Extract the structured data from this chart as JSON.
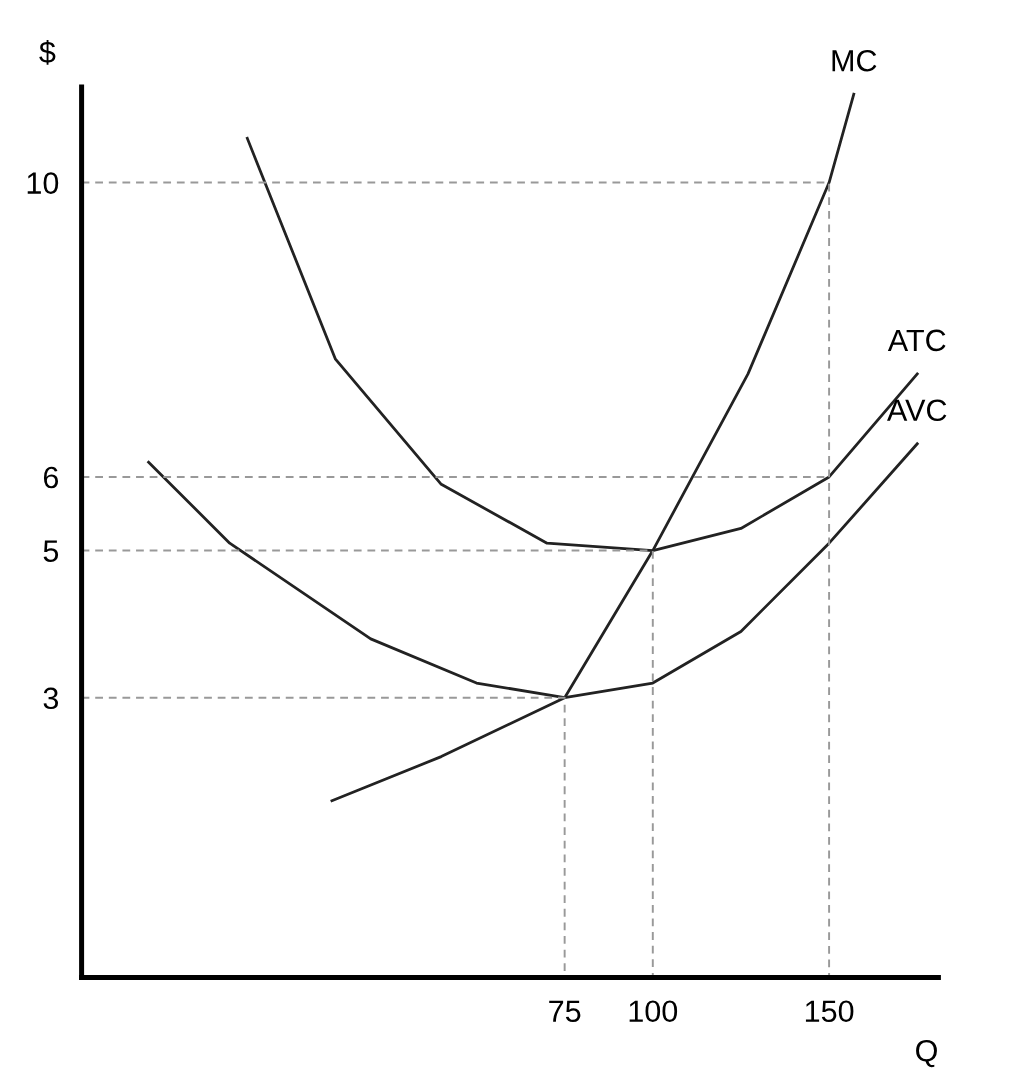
{
  "chart_data": {
    "type": "line",
    "xlabel": "Q",
    "ylabel": "$",
    "xlim": [
      -62,
      181
    ],
    "ylim": [
      -0.8,
      11.3
    ],
    "xticks": [
      75,
      100,
      150
    ],
    "yticks": [
      3,
      5,
      6,
      10
    ],
    "grid": false,
    "legend": false,
    "marker": "none",
    "line_style": "solid",
    "series": [
      {
        "name": "MC",
        "color": "#222222",
        "x": [
          9,
          40,
          75,
          100,
          127,
          150,
          157
        ],
        "values": [
          1.6,
          2.2,
          3,
          5,
          7.4,
          10,
          11.2
        ]
      },
      {
        "name": "ATC",
        "color": "#222222",
        "x": [
          -15,
          10,
          40,
          70,
          100,
          125,
          150,
          175
        ],
        "values": [
          10.6,
          7.6,
          5.9,
          5.1,
          5,
          5.3,
          6,
          7.4
        ]
      },
      {
        "name": "AVC",
        "color": "#222222",
        "x": [
          -43,
          -20,
          20,
          50,
          75,
          100,
          125,
          150,
          175
        ],
        "values": [
          6.2,
          5.1,
          3.8,
          3.2,
          3,
          3.2,
          3.9,
          5.1,
          6.45
        ]
      },
      {
        "color": "#999999",
        "line_style": "dashed",
        "x": [
          -62,
          150,
          150
        ],
        "values": [
          10,
          10,
          -0.8
        ]
      },
      {
        "color": "#999999",
        "line_style": "dashed",
        "x": [
          -62,
          150
        ],
        "values": [
          6,
          6
        ]
      },
      {
        "color": "#999999",
        "line_style": "dashed",
        "x": [
          -62,
          100,
          100
        ],
        "values": [
          5,
          5,
          -0.8
        ]
      },
      {
        "color": "#999999",
        "line_style": "dashed",
        "x": [
          -62,
          75,
          75
        ],
        "values": [
          3,
          3,
          -0.8
        ]
      }
    ]
  }
}
